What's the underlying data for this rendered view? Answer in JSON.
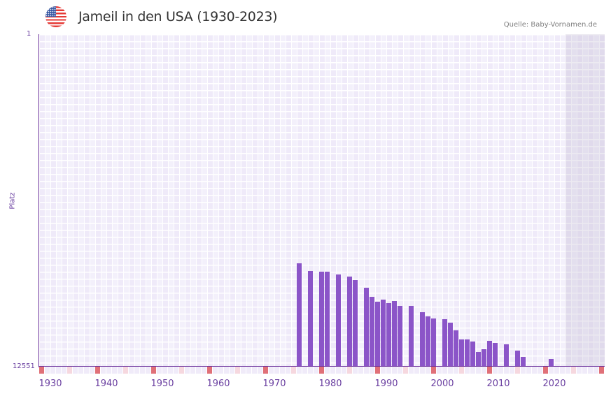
{
  "header": {
    "title": "Jameil in den USA (1930-2023)",
    "flag_icon": "us-flag-icon",
    "source": "Quelle: Baby-Vornamen.de"
  },
  "colors": {
    "bar": "#8b55c8",
    "axis": "#6a2f9a",
    "decade_marker": "#e07078",
    "half_decade_marker": "#f6d8df",
    "text_axis": "#6a3fa0"
  },
  "chart_data": {
    "type": "bar",
    "title": "Jameil in den USA (1930-2023)",
    "xlabel": "",
    "ylabel": "Platz",
    "ylim": [
      12551,
      1
    ],
    "y_inverted": true,
    "y_ticks": [
      "1",
      "12551"
    ],
    "x_range": [
      1930,
      2030
    ],
    "x_ticks": [
      "1930",
      "1940",
      "1950",
      "1960",
      "1970",
      "1980",
      "1990",
      "2000",
      "2010",
      "2020"
    ],
    "no_data_shaded_from": 2024,
    "grid": true,
    "legend": null,
    "categories": [
      1976,
      1978,
      1980,
      1981,
      1983,
      1985,
      1986,
      1988,
      1989,
      1990,
      1991,
      1992,
      1993,
      1994,
      1996,
      1998,
      1999,
      2000,
      2002,
      2003,
      2004,
      2005,
      2006,
      2007,
      2008,
      2009,
      2010,
      2011,
      2013,
      2015,
      2016,
      2021
    ],
    "values": [
      8649,
      8939,
      8965,
      8965,
      9071,
      9150,
      9282,
      9572,
      9915,
      10099,
      10020,
      10152,
      10073,
      10257,
      10257,
      10494,
      10653,
      10732,
      10758,
      10890,
      11180,
      11523,
      11523,
      11602,
      11997,
      11892,
      11575,
      11655,
      11707,
      11945,
      12182,
      12261
    ]
  }
}
